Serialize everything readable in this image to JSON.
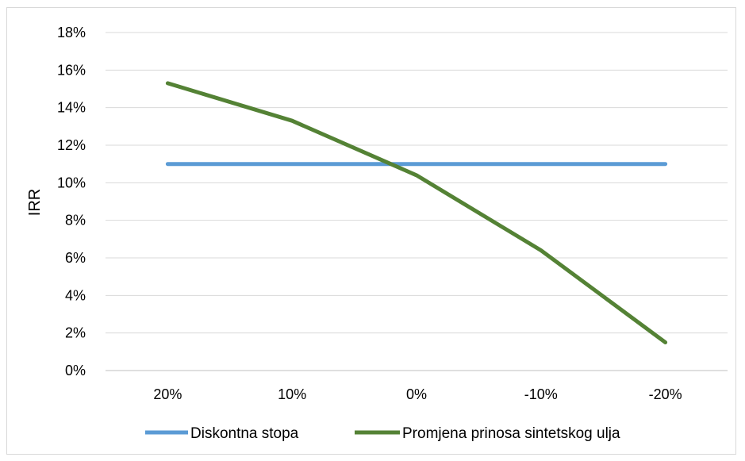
{
  "chart_data": {
    "type": "line",
    "title": "",
    "xlabel": "",
    "ylabel": "IRR",
    "categories": [
      "20%",
      "10%",
      "0%",
      "-10%",
      "-20%"
    ],
    "y_ticks": [
      "0%",
      "2%",
      "4%",
      "6%",
      "8%",
      "10%",
      "12%",
      "14%",
      "16%",
      "18%"
    ],
    "ylim": [
      0,
      18
    ],
    "grid": true,
    "legend_position": "bottom",
    "series": [
      {
        "name": "Diskontna stopa",
        "color": "#5b9bd5",
        "values": [
          11,
          11,
          11,
          11,
          11
        ]
      },
      {
        "name": "Promjena prinosa sintetskog ulja",
        "color": "#548235",
        "values": [
          15.3,
          13.3,
          10.4,
          6.4,
          1.5
        ]
      }
    ]
  }
}
